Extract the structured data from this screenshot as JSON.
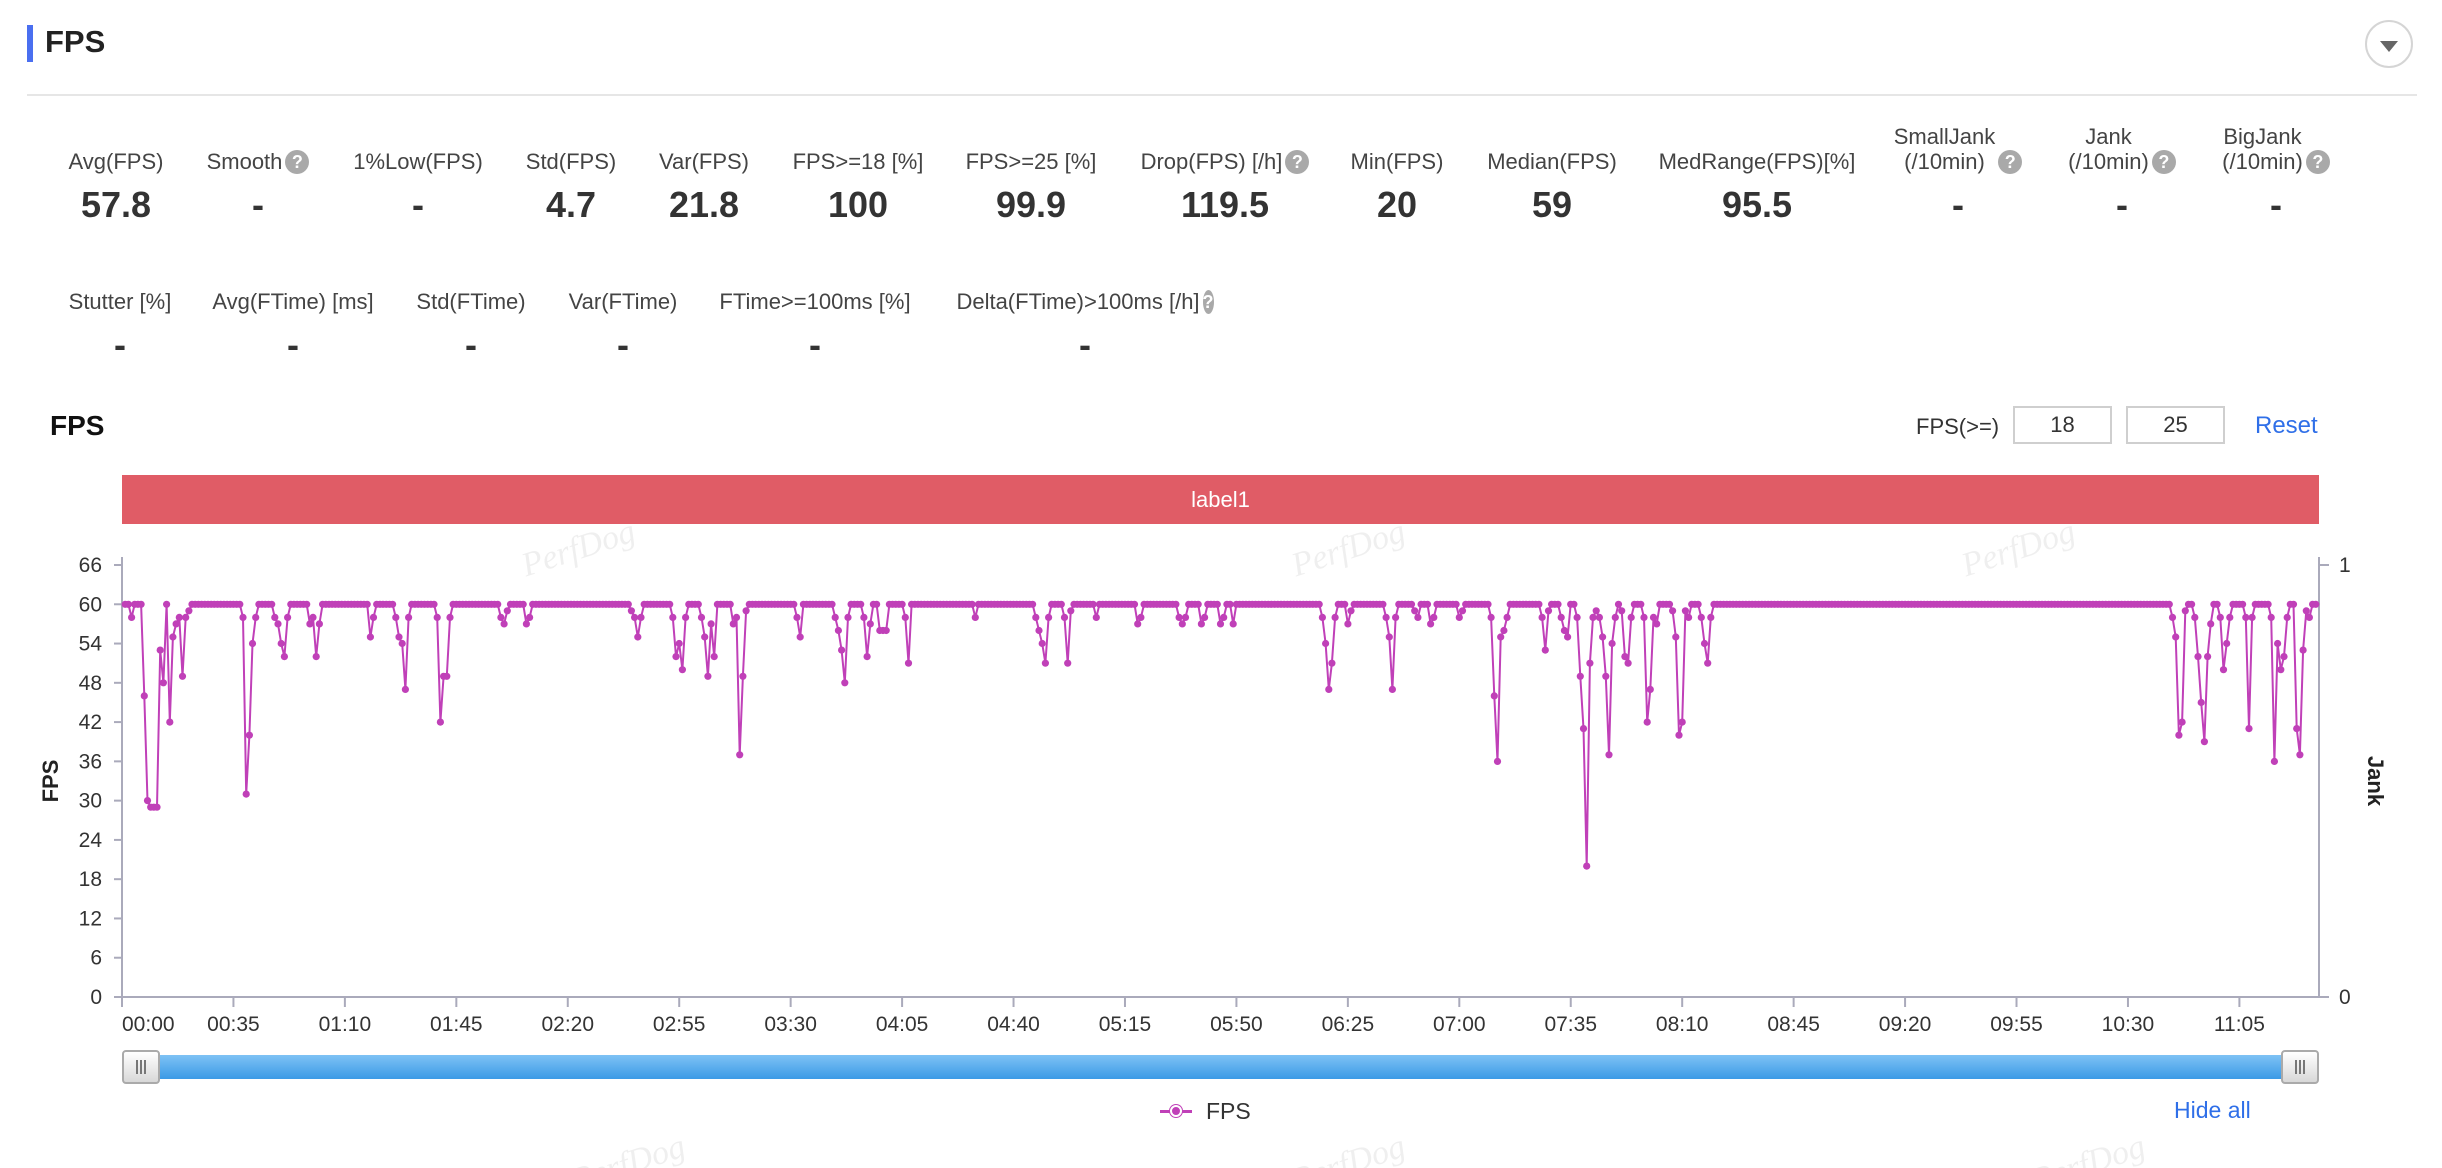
{
  "header": {
    "title": "FPS"
  },
  "metrics_row1": [
    {
      "label": "Avg(FPS)",
      "value": "57.8",
      "help": false
    },
    {
      "label": "Smooth",
      "value": "-",
      "help": true
    },
    {
      "label": "1%Low(FPS)",
      "value": "-",
      "help": false
    },
    {
      "label": "Std(FPS)",
      "value": "4.7",
      "help": false
    },
    {
      "label": "Var(FPS)",
      "value": "21.8",
      "help": false
    },
    {
      "label": "FPS>=18 [%]",
      "value": "100",
      "help": false
    },
    {
      "label": "FPS>=25 [%]",
      "value": "99.9",
      "help": false
    },
    {
      "label": "Drop(FPS) [/h]",
      "value": "119.5",
      "help": true
    },
    {
      "label": "Min(FPS)",
      "value": "20",
      "help": false
    },
    {
      "label": "Median(FPS)",
      "value": "59",
      "help": false
    },
    {
      "label": "MedRange(FPS)[%]",
      "value": "95.5",
      "help": false
    },
    {
      "label": "SmallJank\n(/10min)",
      "value": "-",
      "help": true
    },
    {
      "label": "Jank\n(/10min)",
      "value": "-",
      "help": true
    },
    {
      "label": "BigJank\n(/10min)",
      "value": "-",
      "help": true
    }
  ],
  "metrics_row2": [
    {
      "label": "Stutter [%]",
      "value": "-",
      "help": false
    },
    {
      "label": "Avg(FTime) [ms]",
      "value": "-",
      "help": false
    },
    {
      "label": "Std(FTime)",
      "value": "-",
      "help": false
    },
    {
      "label": "Var(FTime)",
      "value": "-",
      "help": false
    },
    {
      "label": "FTime>=100ms [%]",
      "value": "-",
      "help": false
    },
    {
      "label": "Delta(FTime)>100ms [/h]",
      "value": "-",
      "help": true
    }
  ],
  "help_glyph": "?",
  "chart_section": {
    "title": "FPS",
    "threshold_label": "FPS(>=)",
    "threshold_low": "18",
    "threshold_high": "25",
    "reset_label": "Reset",
    "band_label": "label1",
    "legend_label": "FPS",
    "hide_all_label": "Hide all",
    "watermark": "PerfDog"
  },
  "colors": {
    "accent": "#4a6ff0",
    "series": "#c040b8",
    "band": "#e05c66",
    "link": "#2f6fe8",
    "slider": "#4aa3ee"
  },
  "chart_data": {
    "type": "line",
    "title": "",
    "xlabel": "",
    "ylabel": "FPS",
    "y2label": "Jank",
    "ylim": [
      0,
      66
    ],
    "y2lim": [
      0,
      1
    ],
    "yticks": [
      0,
      6,
      12,
      18,
      24,
      30,
      36,
      42,
      48,
      54,
      60,
      66
    ],
    "y2ticks": [
      0,
      1
    ],
    "x_tick_labels": [
      "00:00",
      "00:35",
      "01:10",
      "01:45",
      "02:20",
      "02:55",
      "03:30",
      "04:05",
      "04:40",
      "05:15",
      "05:50",
      "06:25",
      "07:00",
      "07:35",
      "08:10",
      "08:45",
      "09:20",
      "09:55",
      "10:30",
      "11:05"
    ],
    "x_tick_step_seconds": 35,
    "x_range_seconds": [
      0,
      690
    ],
    "baseline_fps": 60,
    "series": [
      {
        "name": "FPS",
        "dips": [
          [
            3,
            58
          ],
          [
            7,
            46
          ],
          [
            8,
            30
          ],
          [
            9,
            29
          ],
          [
            10,
            29
          ],
          [
            11,
            29
          ],
          [
            12,
            53
          ],
          [
            13,
            48
          ],
          [
            14,
            60
          ],
          [
            15,
            42
          ],
          [
            16,
            55
          ],
          [
            17,
            57
          ],
          [
            18,
            58
          ],
          [
            19,
            49
          ],
          [
            20,
            58
          ],
          [
            21,
            59
          ],
          [
            38,
            58
          ],
          [
            39,
            31
          ],
          [
            40,
            40
          ],
          [
            41,
            54
          ],
          [
            42,
            58
          ],
          [
            48,
            58
          ],
          [
            49,
            57
          ],
          [
            50,
            54
          ],
          [
            51,
            52
          ],
          [
            52,
            58
          ],
          [
            59,
            57
          ],
          [
            60,
            58
          ],
          [
            61,
            52
          ],
          [
            62,
            57
          ],
          [
            78,
            55
          ],
          [
            79,
            58
          ],
          [
            86,
            58
          ],
          [
            87,
            55
          ],
          [
            88,
            54
          ],
          [
            89,
            47
          ],
          [
            90,
            58
          ],
          [
            99,
            58
          ],
          [
            100,
            42
          ],
          [
            101,
            49
          ],
          [
            102,
            49
          ],
          [
            103,
            58
          ],
          [
            119,
            58
          ],
          [
            120,
            57
          ],
          [
            121,
            59
          ],
          [
            127,
            57
          ],
          [
            128,
            58
          ],
          [
            160,
            59
          ],
          [
            161,
            58
          ],
          [
            162,
            55
          ],
          [
            163,
            58
          ],
          [
            173,
            58
          ],
          [
            174,
            52
          ],
          [
            175,
            54
          ],
          [
            176,
            50
          ],
          [
            177,
            58
          ],
          [
            182,
            58
          ],
          [
            183,
            55
          ],
          [
            184,
            49
          ],
          [
            185,
            57
          ],
          [
            186,
            52
          ],
          [
            192,
            57
          ],
          [
            193,
            58
          ],
          [
            194,
            37
          ],
          [
            195,
            49
          ],
          [
            196,
            59
          ],
          [
            212,
            58
          ],
          [
            213,
            55
          ],
          [
            224,
            58
          ],
          [
            225,
            56
          ],
          [
            226,
            53
          ],
          [
            227,
            48
          ],
          [
            228,
            58
          ],
          [
            233,
            58
          ],
          [
            234,
            52
          ],
          [
            235,
            57
          ],
          [
            238,
            56
          ],
          [
            239,
            56
          ],
          [
            240,
            56
          ],
          [
            246,
            58
          ],
          [
            247,
            51
          ],
          [
            248,
            60
          ],
          [
            268,
            58
          ],
          [
            287,
            58
          ],
          [
            288,
            56
          ],
          [
            289,
            54
          ],
          [
            290,
            51
          ],
          [
            291,
            58
          ],
          [
            296,
            58
          ],
          [
            297,
            51
          ],
          [
            298,
            59
          ],
          [
            306,
            58
          ],
          [
            319,
            57
          ],
          [
            320,
            58
          ],
          [
            332,
            58
          ],
          [
            333,
            57
          ],
          [
            334,
            58
          ],
          [
            339,
            57
          ],
          [
            340,
            58
          ],
          [
            345,
            57
          ],
          [
            346,
            58
          ],
          [
            349,
            57
          ],
          [
            377,
            58
          ],
          [
            378,
            54
          ],
          [
            379,
            47
          ],
          [
            380,
            51
          ],
          [
            381,
            58
          ],
          [
            385,
            57
          ],
          [
            386,
            59
          ],
          [
            397,
            58
          ],
          [
            398,
            55
          ],
          [
            399,
            47
          ],
          [
            400,
            58
          ],
          [
            406,
            59
          ],
          [
            407,
            58
          ],
          [
            411,
            57
          ],
          [
            412,
            58
          ],
          [
            420,
            58
          ],
          [
            421,
            59
          ],
          [
            430,
            58
          ],
          [
            431,
            46
          ],
          [
            432,
            36
          ],
          [
            433,
            55
          ],
          [
            434,
            56
          ],
          [
            435,
            58
          ],
          [
            446,
            58
          ],
          [
            447,
            53
          ],
          [
            448,
            59
          ],
          [
            452,
            58
          ],
          [
            453,
            56
          ],
          [
            454,
            55
          ],
          [
            457,
            58
          ],
          [
            458,
            49
          ],
          [
            459,
            41
          ],
          [
            460,
            20
          ],
          [
            461,
            51
          ],
          [
            462,
            58
          ],
          [
            463,
            59
          ],
          [
            464,
            58
          ],
          [
            465,
            55
          ],
          [
            466,
            49
          ],
          [
            467,
            37
          ],
          [
            468,
            54
          ],
          [
            469,
            58
          ],
          [
            471,
            59
          ],
          [
            472,
            52
          ],
          [
            473,
            51
          ],
          [
            474,
            58
          ],
          [
            478,
            58
          ],
          [
            479,
            42
          ],
          [
            480,
            47
          ],
          [
            481,
            58
          ],
          [
            482,
            57
          ],
          [
            487,
            59
          ],
          [
            488,
            55
          ],
          [
            489,
            40
          ],
          [
            490,
            42
          ],
          [
            491,
            59
          ],
          [
            492,
            58
          ],
          [
            496,
            58
          ],
          [
            497,
            54
          ],
          [
            498,
            51
          ],
          [
            499,
            58
          ],
          [
            644,
            58
          ],
          [
            645,
            55
          ],
          [
            646,
            40
          ],
          [
            647,
            42
          ],
          [
            648,
            59
          ],
          [
            651,
            58
          ],
          [
            652,
            52
          ],
          [
            653,
            45
          ],
          [
            654,
            39
          ],
          [
            655,
            52
          ],
          [
            656,
            57
          ],
          [
            659,
            58
          ],
          [
            660,
            50
          ],
          [
            661,
            54
          ],
          [
            662,
            58
          ],
          [
            667,
            58
          ],
          [
            668,
            41
          ],
          [
            669,
            58
          ],
          [
            675,
            58
          ],
          [
            676,
            36
          ],
          [
            677,
            54
          ],
          [
            678,
            50
          ],
          [
            679,
            52
          ],
          [
            680,
            58
          ],
          [
            683,
            41
          ],
          [
            684,
            37
          ],
          [
            685,
            53
          ],
          [
            686,
            59
          ],
          [
            687,
            58
          ]
        ]
      }
    ]
  }
}
